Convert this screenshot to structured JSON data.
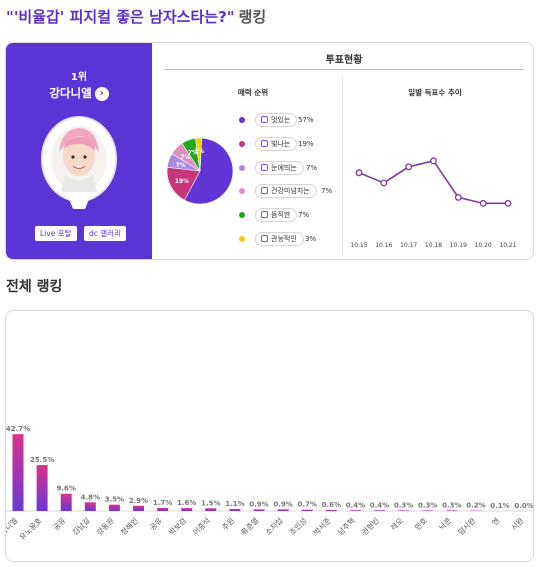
{
  "page": {
    "title": "\"'비율갑' 피지컬 좋은 남자스타는?\"",
    "title_suffix": "랭킹",
    "accent_color": "#5b34d6"
  },
  "profile": {
    "rank": "1위",
    "name": "강다니엘",
    "arrow_icon": "chevron-right-icon",
    "live_button": "Live 포탈",
    "gallery_button": "dc 갤러리"
  },
  "vote_status": {
    "title": "투표현황",
    "charm_title": "매력 순위",
    "trend_title": "일별 득표수 추이"
  },
  "charm_chart": {
    "type": "pie",
    "items": [
      {
        "label": "멋있는",
        "pct_label": "57%",
        "value": 57,
        "color": "#6236d6"
      },
      {
        "label": "빛나는",
        "pct_label": "19%",
        "value": 19,
        "color": "#c7357d"
      },
      {
        "label": "눈에띄는",
        "pct_label": "7%",
        "value": 7,
        "color": "#a78bdf"
      },
      {
        "label": "건강미넘치는",
        "pct_label": "7%",
        "value": 7,
        "color": "#de8fc0"
      },
      {
        "label": "듬직한",
        "pct_label": "7%",
        "value": 7,
        "color": "#1fa91f"
      },
      {
        "label": "관능적인",
        "pct_label": "3%",
        "value": 3,
        "color": "#f2d100"
      }
    ],
    "slice_labels": [
      "",
      "19%",
      "7%",
      "7%",
      "7%",
      "3%"
    ]
  },
  "ranking": {
    "title": "전체 랭킹"
  },
  "chart_data": [
    {
      "type": "line",
      "x": [
        "10.15",
        "10.16",
        "10.17",
        "10.18",
        "10.19",
        "10.20",
        "10.21"
      ],
      "values": [
        65,
        53,
        72,
        79,
        36,
        29,
        29
      ],
      "ylim": [
        0,
        100
      ],
      "color": "#7d3a9e",
      "grid": false
    },
    {
      "type": "bar",
      "categories": [
        "강다니엘",
        "유노윤호",
        "공유",
        "김남길",
        "강동원",
        "정해인",
        "공유",
        "박보검",
        "이종석",
        "주원",
        "류준열",
        "소지섭",
        "조인성",
        "박서준",
        "남주혁",
        "권현빈",
        "레오",
        "민호",
        "닉쿤",
        "임시완",
        "엔",
        "시완"
      ],
      "values": [
        42.7,
        25.5,
        9.6,
        4.8,
        3.5,
        2.9,
        1.7,
        1.6,
        1.5,
        1.1,
        0.9,
        0.9,
        0.7,
        0.6,
        0.4,
        0.4,
        0.3,
        0.3,
        0.3,
        0.2,
        0.1,
        0.0
      ],
      "value_labels": [
        "42.7%",
        "25.5%",
        "9.6%",
        "4.8%",
        "3.5%",
        "2.9%",
        "1.7%",
        "1.6%",
        "1.5%",
        "1.1%",
        "0.9%",
        "0.9%",
        "0.7%",
        "0.6%",
        "0.4%",
        "0.4%",
        "0.3%",
        "0.3%",
        "0.3%",
        "0.2%",
        "0.1%",
        "0.0%"
      ],
      "ylim": [
        0,
        100
      ],
      "gradient": [
        "#d9328a",
        "#6a38d6"
      ],
      "grid": false
    }
  ]
}
